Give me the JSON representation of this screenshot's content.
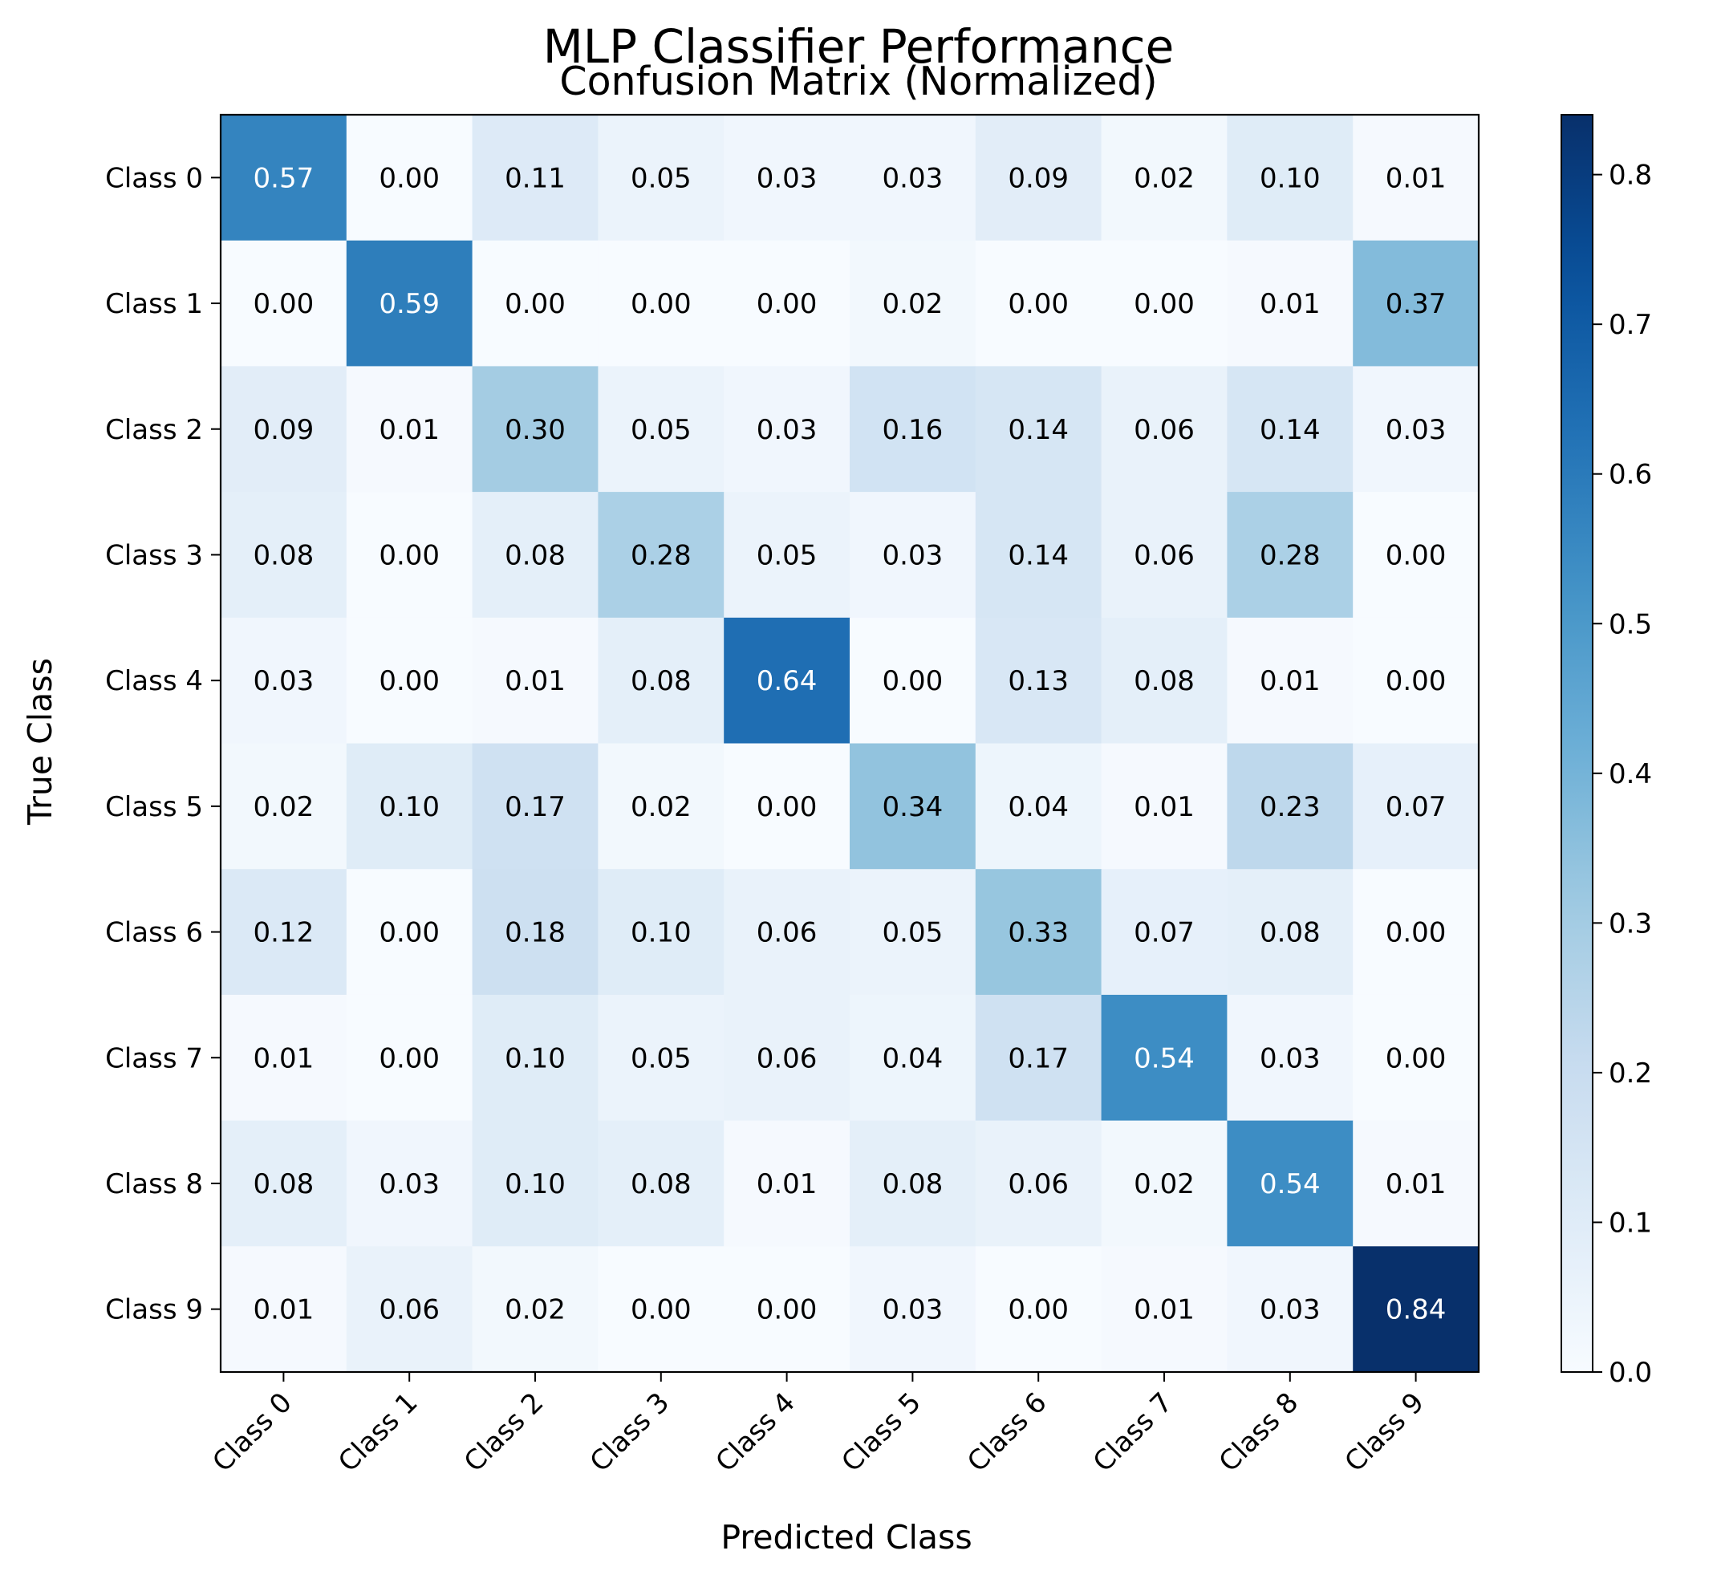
{
  "chart_data": {
    "type": "heatmap",
    "suptitle": "MLP Classifier Performance",
    "title": "Confusion Matrix (Normalized)",
    "xlabel": "Predicted Class",
    "ylabel": "True Class",
    "x_categories": [
      "Class 0",
      "Class 1",
      "Class 2",
      "Class 3",
      "Class 4",
      "Class 5",
      "Class 6",
      "Class 7",
      "Class 8",
      "Class 9"
    ],
    "y_categories": [
      "Class 0",
      "Class 1",
      "Class 2",
      "Class 3",
      "Class 4",
      "Class 5",
      "Class 6",
      "Class 7",
      "Class 8",
      "Class 9"
    ],
    "values": [
      [
        0.57,
        0.0,
        0.11,
        0.05,
        0.03,
        0.03,
        0.09,
        0.02,
        0.1,
        0.01
      ],
      [
        0.0,
        0.59,
        0.0,
        0.0,
        0.0,
        0.02,
        0.0,
        0.0,
        0.01,
        0.37
      ],
      [
        0.09,
        0.01,
        0.3,
        0.05,
        0.03,
        0.16,
        0.14,
        0.06,
        0.14,
        0.03
      ],
      [
        0.08,
        0.0,
        0.08,
        0.28,
        0.05,
        0.03,
        0.14,
        0.06,
        0.28,
        0.0
      ],
      [
        0.03,
        0.0,
        0.01,
        0.08,
        0.64,
        0.0,
        0.13,
        0.08,
        0.01,
        0.0
      ],
      [
        0.02,
        0.1,
        0.17,
        0.02,
        0.0,
        0.34,
        0.04,
        0.01,
        0.23,
        0.07
      ],
      [
        0.12,
        0.0,
        0.18,
        0.1,
        0.06,
        0.05,
        0.33,
        0.07,
        0.08,
        0.0
      ],
      [
        0.01,
        0.0,
        0.1,
        0.05,
        0.06,
        0.04,
        0.17,
        0.54,
        0.03,
        0.0
      ],
      [
        0.08,
        0.03,
        0.1,
        0.08,
        0.01,
        0.08,
        0.06,
        0.02,
        0.54,
        0.01
      ],
      [
        0.01,
        0.06,
        0.02,
        0.0,
        0.0,
        0.03,
        0.0,
        0.01,
        0.03,
        0.84
      ]
    ],
    "colormap": "Blues",
    "colorbar": {
      "range": [
        0.0,
        0.84
      ],
      "ticks": [
        0.0,
        0.1,
        0.2,
        0.3,
        0.4,
        0.5,
        0.6,
        0.7,
        0.8
      ],
      "tick_labels": [
        "0.0",
        "0.1",
        "0.2",
        "0.3",
        "0.4",
        "0.5",
        "0.6",
        "0.7",
        "0.8"
      ]
    },
    "value_format": "2 decimals",
    "text_color_threshold": 0.42,
    "grid": false
  }
}
